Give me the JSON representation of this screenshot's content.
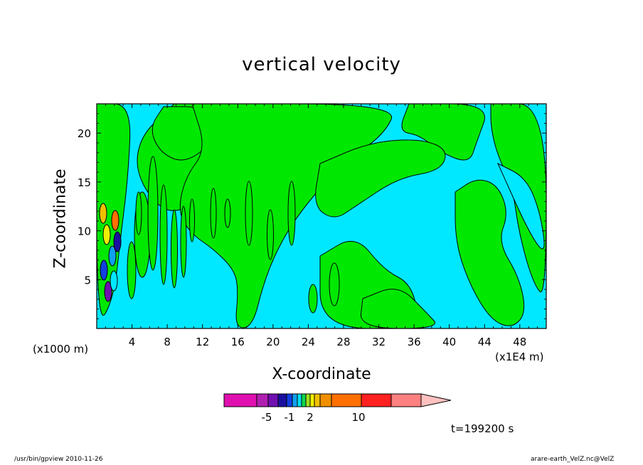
{
  "chart_data": {
    "type": "heatmap",
    "title": "vertical velocity",
    "xlabel": "X-coordinate",
    "ylabel": "Z-coordinate",
    "x_unit_note": "(x1E4 m)",
    "y_unit_note": "(x1000 m)",
    "x_ticks": [
      "4",
      "8",
      "12",
      "16",
      "20",
      "24",
      "28",
      "32",
      "36",
      "40",
      "44",
      "48"
    ],
    "y_ticks": [
      "5",
      "10",
      "15",
      "20"
    ],
    "xlim": [
      0,
      51
    ],
    "ylim": [
      0,
      23
    ],
    "time_label": "t=199200 s",
    "colorbar": {
      "tick_labels": [
        "-5",
        "-1",
        "2",
        "10"
      ],
      "colors": [
        "#e010b0",
        "#b020b0",
        "#7010b0",
        "#1a10a0",
        "#1040e0",
        "#10a0f0",
        "#00e0f0",
        "#10d850",
        "#a0e020",
        "#f0f000",
        "#f0c000",
        "#f09000",
        "#ff7000",
        "#ff2020",
        "#ff8080",
        "#ffc0c0"
      ],
      "background_color": "#00e8ff",
      "positive_color": "#00e800"
    }
  },
  "footer": {
    "left": "/usr/bin/gpview   2010-11-26",
    "right": "arare-earth_VelZ.nc@VelZ"
  }
}
